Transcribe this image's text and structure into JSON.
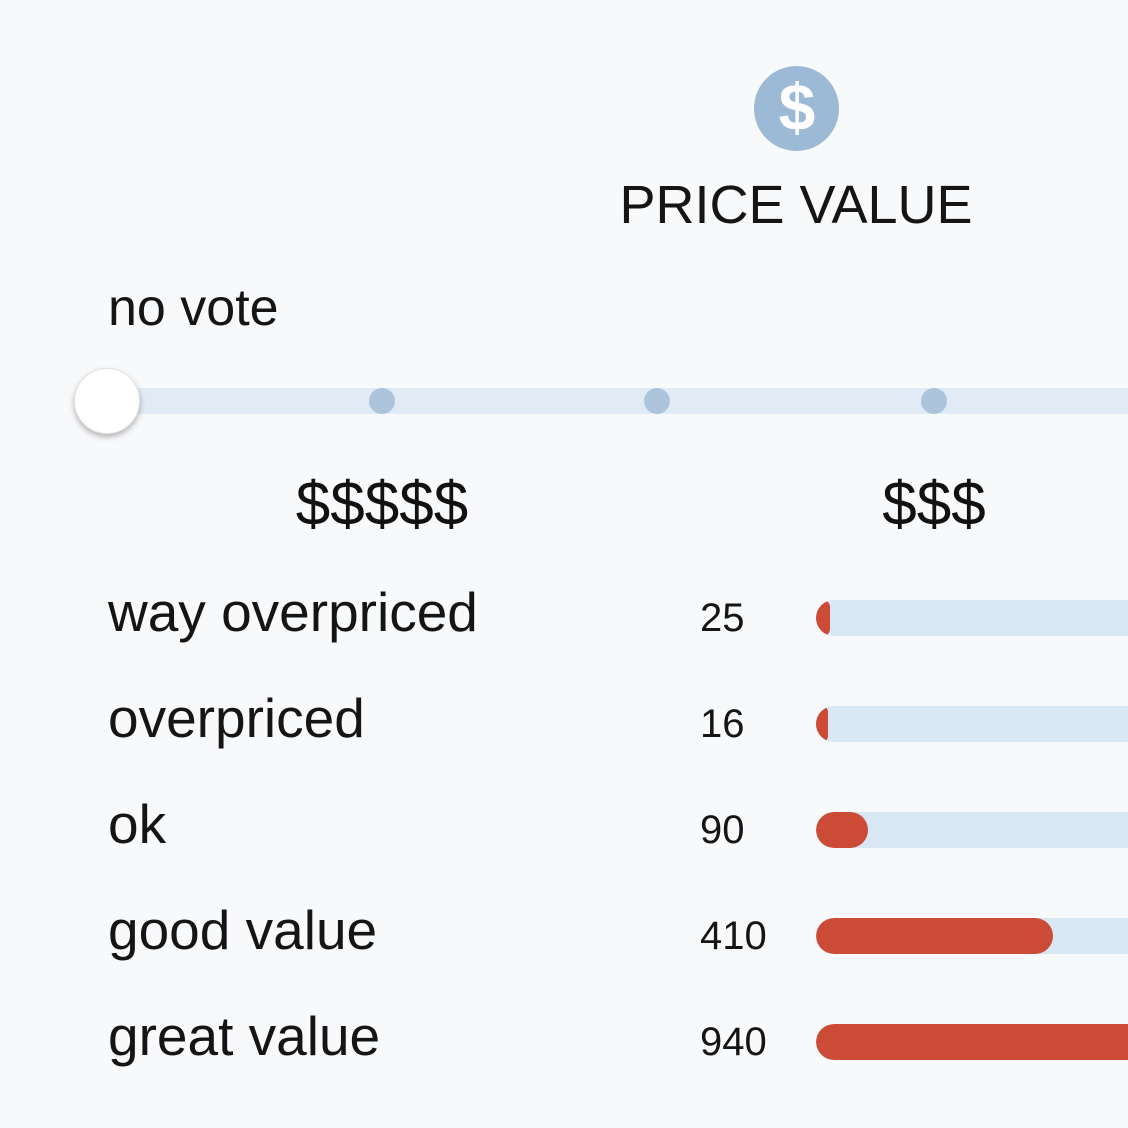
{
  "header": {
    "icon": "dollar-icon",
    "icon_color": "#9cb9d6",
    "title": "PRICE VALUE"
  },
  "vote": {
    "status": "no vote",
    "slider_level": 0,
    "slider_steps": 5
  },
  "price_scale": {
    "left_label": "$$$$$",
    "middle_label": "$$$"
  },
  "ratings": {
    "bar_color": "#cb4b37",
    "track_color": "#d9e6f3",
    "max_count": 940,
    "items": [
      {
        "label": "way overpriced",
        "count": "25",
        "value": 25
      },
      {
        "label": "overpriced",
        "count": "16",
        "value": 16
      },
      {
        "label": "ok",
        "count": "90",
        "value": 90
      },
      {
        "label": "good value",
        "count": "410",
        "value": 410
      },
      {
        "label": "great value",
        "count": "940",
        "value": 940
      }
    ]
  }
}
